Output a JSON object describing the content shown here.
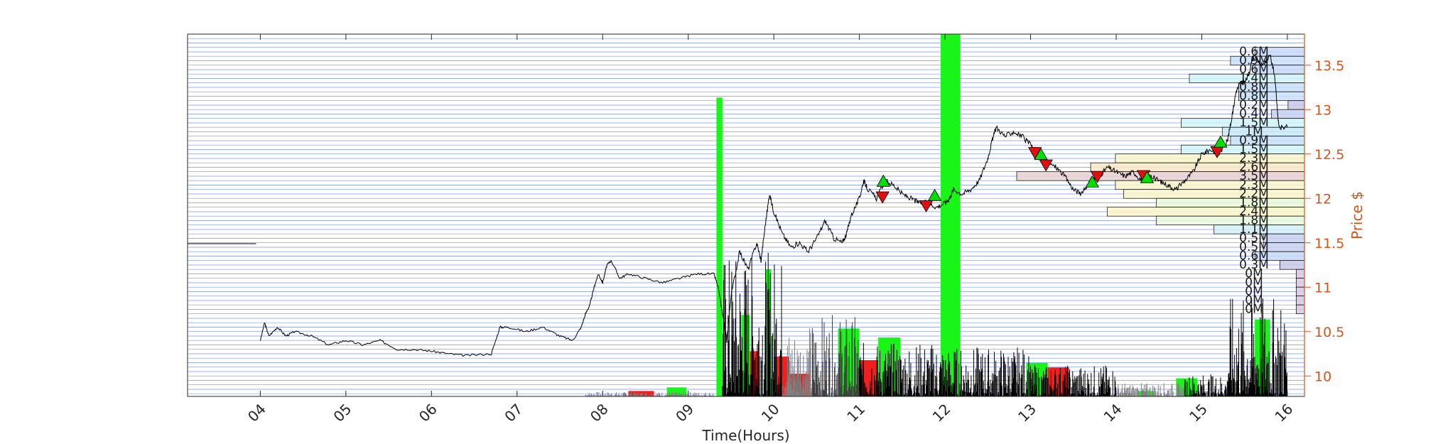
{
  "chart_data": {
    "type": "line",
    "title": "",
    "xlabel": "Time(Hours)",
    "ylabel": "Price $",
    "xlim": [
      3.15,
      16.2
    ],
    "ylim": [
      9.77,
      13.85
    ],
    "x_ticks": [
      "04",
      "05",
      "06",
      "07",
      "08",
      "09",
      "10",
      "11",
      "12",
      "13",
      "14",
      "15",
      "16"
    ],
    "y_ticks": [
      "10",
      "10.5",
      "11",
      "11.5",
      "12",
      "12.5",
      "13",
      "13.5"
    ],
    "grid": "horizontal price-bin lines",
    "colors": {
      "axis": "#262626",
      "price_axis": "#D95319",
      "grid": "#4D6CFF",
      "price_line": "#000000",
      "buy_marker": "#00E000",
      "sell_marker": "#E01010",
      "volume_green": "#19F419",
      "volume_red": "#F02020",
      "volume_black": "#000000",
      "volume_gray": "#808080"
    },
    "price_series": [
      [
        3.15,
        11.49
      ],
      [
        3.95,
        11.49
      ],
      [
        4.0,
        10.4
      ],
      [
        4.05,
        10.6
      ],
      [
        4.1,
        10.45
      ],
      [
        4.2,
        10.55
      ],
      [
        4.3,
        10.45
      ],
      [
        4.4,
        10.5
      ],
      [
        4.6,
        10.45
      ],
      [
        4.8,
        10.35
      ],
      [
        5.0,
        10.4
      ],
      [
        5.2,
        10.35
      ],
      [
        5.4,
        10.4
      ],
      [
        5.6,
        10.3
      ],
      [
        5.8,
        10.3
      ],
      [
        6.0,
        10.28
      ],
      [
        6.2,
        10.25
      ],
      [
        6.4,
        10.23
      ],
      [
        6.7,
        10.25
      ],
      [
        6.8,
        10.55
      ],
      [
        6.9,
        10.55
      ],
      [
        7.1,
        10.5
      ],
      [
        7.3,
        10.55
      ],
      [
        7.5,
        10.45
      ],
      [
        7.65,
        10.4
      ],
      [
        7.75,
        10.55
      ],
      [
        7.8,
        10.7
      ],
      [
        7.85,
        10.8
      ],
      [
        7.9,
        11.0
      ],
      [
        7.95,
        11.15
      ],
      [
        8.0,
        11.05
      ],
      [
        8.05,
        11.25
      ],
      [
        8.1,
        11.3
      ],
      [
        8.2,
        11.1
      ],
      [
        8.3,
        11.15
      ],
      [
        8.5,
        11.1
      ],
      [
        8.7,
        11.05
      ],
      [
        8.9,
        11.1
      ],
      [
        9.1,
        11.15
      ],
      [
        9.3,
        11.15
      ],
      [
        9.35,
        11.0
      ],
      [
        9.4,
        10.7
      ],
      [
        9.45,
        10.4
      ],
      [
        9.5,
        10.9
      ],
      [
        9.6,
        11.4
      ],
      [
        9.7,
        11.2
      ],
      [
        9.8,
        11.5
      ],
      [
        9.85,
        11.3
      ],
      [
        9.9,
        11.7
      ],
      [
        9.95,
        12.05
      ],
      [
        10.0,
        11.85
      ],
      [
        10.1,
        11.6
      ],
      [
        10.2,
        11.45
      ],
      [
        10.3,
        11.5
      ],
      [
        10.4,
        11.4
      ],
      [
        10.5,
        11.55
      ],
      [
        10.6,
        11.75
      ],
      [
        10.7,
        11.55
      ],
      [
        10.8,
        11.5
      ],
      [
        10.85,
        11.6
      ],
      [
        10.9,
        11.8
      ],
      [
        11.0,
        12.0
      ],
      [
        11.05,
        12.2
      ],
      [
        11.1,
        12.1
      ],
      [
        11.2,
        12.0
      ],
      [
        11.3,
        12.2
      ],
      [
        11.4,
        12.15
      ],
      [
        11.5,
        12.05
      ],
      [
        11.6,
        12.0
      ],
      [
        11.7,
        11.95
      ],
      [
        11.8,
        11.95
      ],
      [
        11.9,
        11.9
      ],
      [
        12.0,
        11.95
      ],
      [
        12.05,
        12.0
      ],
      [
        12.1,
        12.1
      ],
      [
        12.2,
        12.05
      ],
      [
        12.3,
        12.1
      ],
      [
        12.4,
        12.2
      ],
      [
        12.5,
        12.45
      ],
      [
        12.55,
        12.65
      ],
      [
        12.6,
        12.8
      ],
      [
        12.7,
        12.7
      ],
      [
        12.8,
        12.75
      ],
      [
        12.9,
        12.7
      ],
      [
        13.0,
        12.6
      ],
      [
        13.1,
        12.5
      ],
      [
        13.2,
        12.4
      ],
      [
        13.3,
        12.35
      ],
      [
        13.4,
        12.25
      ],
      [
        13.5,
        12.1
      ],
      [
        13.6,
        12.05
      ],
      [
        13.7,
        12.2
      ],
      [
        13.8,
        12.25
      ],
      [
        13.9,
        12.35
      ],
      [
        14.0,
        12.3
      ],
      [
        14.1,
        12.25
      ],
      [
        14.2,
        12.3
      ],
      [
        14.3,
        12.2
      ],
      [
        14.4,
        12.25
      ],
      [
        14.5,
        12.2
      ],
      [
        14.6,
        12.15
      ],
      [
        14.7,
        12.1
      ],
      [
        14.8,
        12.2
      ],
      [
        14.9,
        12.3
      ],
      [
        15.0,
        12.5
      ],
      [
        15.1,
        12.55
      ],
      [
        15.2,
        12.5
      ],
      [
        15.3,
        12.65
      ],
      [
        15.35,
        12.9
      ],
      [
        15.4,
        13.2
      ],
      [
        15.45,
        13.3
      ],
      [
        15.5,
        13.3
      ],
      [
        15.55,
        13.4
      ],
      [
        15.6,
        13.6
      ],
      [
        15.7,
        13.5
      ],
      [
        15.8,
        13.6
      ],
      [
        15.85,
        13.4
      ],
      [
        15.9,
        12.8
      ],
      [
        16.0,
        12.8
      ]
    ],
    "signals": [
      {
        "x": 11.28,
        "y": 12.19,
        "type": "buy"
      },
      {
        "x": 11.27,
        "y": 12.02,
        "type": "sell"
      },
      {
        "x": 11.78,
        "y": 11.92,
        "type": "sell"
      },
      {
        "x": 11.88,
        "y": 12.03,
        "type": "buy"
      },
      {
        "x": 13.05,
        "y": 12.52,
        "type": "sell"
      },
      {
        "x": 13.12,
        "y": 12.49,
        "type": "buy"
      },
      {
        "x": 13.18,
        "y": 12.38,
        "type": "sell"
      },
      {
        "x": 13.72,
        "y": 12.18,
        "type": "buy"
      },
      {
        "x": 13.78,
        "y": 12.25,
        "type": "sell"
      },
      {
        "x": 14.32,
        "y": 12.26,
        "type": "sell"
      },
      {
        "x": 14.36,
        "y": 12.23,
        "type": "buy"
      },
      {
        "x": 15.18,
        "y": 12.53,
        "type": "sell"
      },
      {
        "x": 15.22,
        "y": 12.63,
        "type": "buy"
      }
    ],
    "volume_bars": [
      {
        "x0": 8.3,
        "x1": 8.6,
        "v": 0.06,
        "color": "red"
      },
      {
        "x0": 8.75,
        "x1": 8.98,
        "v": 0.1,
        "color": "green"
      },
      {
        "x0": 9.33,
        "x1": 9.4,
        "v": 3.3,
        "color": "green"
      },
      {
        "x0": 9.62,
        "x1": 9.72,
        "v": 0.9,
        "color": "green"
      },
      {
        "x0": 9.72,
        "x1": 9.82,
        "v": 0.5,
        "color": "red"
      },
      {
        "x0": 9.9,
        "x1": 9.97,
        "v": 1.4,
        "color": "green"
      },
      {
        "x0": 10.0,
        "x1": 10.18,
        "v": 0.44,
        "color": "red"
      },
      {
        "x0": 10.12,
        "x1": 10.42,
        "v": 0.25,
        "color": "red"
      },
      {
        "x0": 10.75,
        "x1": 11.0,
        "v": 0.75,
        "color": "green"
      },
      {
        "x0": 11.0,
        "x1": 11.22,
        "v": 0.4,
        "color": "red"
      },
      {
        "x0": 11.22,
        "x1": 11.48,
        "v": 0.65,
        "color": "green"
      },
      {
        "x0": 11.95,
        "x1": 12.18,
        "v": 4.0,
        "color": "green"
      },
      {
        "x0": 12.95,
        "x1": 13.2,
        "v": 0.37,
        "color": "green"
      },
      {
        "x0": 13.2,
        "x1": 13.45,
        "v": 0.32,
        "color": "red"
      },
      {
        "x0": 14.25,
        "x1": 14.45,
        "v": 0.06,
        "color": "green"
      },
      {
        "x0": 14.7,
        "x1": 14.95,
        "v": 0.2,
        "color": "green"
      },
      {
        "x0": 15.62,
        "x1": 15.8,
        "v": 0.85,
        "color": "green"
      }
    ],
    "volume_profile": [
      {
        "price": 13.65,
        "label": "0.6M",
        "volume": 0.6,
        "color": "#C8D8F8"
      },
      {
        "price": 13.55,
        "label": "0.9M",
        "volume": 0.9,
        "color": "#C8E0F8"
      },
      {
        "price": 13.45,
        "label": "0.6M",
        "volume": 0.6,
        "color": "#C8D8F8"
      },
      {
        "price": 13.35,
        "label": "1.4M",
        "volume": 1.4,
        "color": "#D0F4F8"
      },
      {
        "price": 13.25,
        "label": "0.8M",
        "volume": 0.8,
        "color": "#C8E0F8"
      },
      {
        "price": 13.15,
        "label": "0.8M",
        "volume": 0.8,
        "color": "#C8E0F8"
      },
      {
        "price": 13.05,
        "label": "0.2M",
        "volume": 0.2,
        "color": "#C8C8E8"
      },
      {
        "price": 12.95,
        "label": "0.4M",
        "volume": 0.4,
        "color": "#C8D0F0"
      },
      {
        "price": 12.85,
        "label": "1.5M",
        "volume": 1.5,
        "color": "#D0F4F8"
      },
      {
        "price": 12.75,
        "label": "1M",
        "volume": 1.0,
        "color": "#C8E8F8"
      },
      {
        "price": 12.65,
        "label": "0.9M",
        "volume": 0.9,
        "color": "#C8E0F8"
      },
      {
        "price": 12.55,
        "label": "1.5M",
        "volume": 1.5,
        "color": "#D0F4F8"
      },
      {
        "price": 12.45,
        "label": "2.3M",
        "volume": 2.3,
        "color": "#F8F4C8"
      },
      {
        "price": 12.35,
        "label": "2.6M",
        "volume": 2.6,
        "color": "#F8E8C8"
      },
      {
        "price": 12.25,
        "label": "3.5M",
        "volume": 3.5,
        "color": "#E8D0D0"
      },
      {
        "price": 12.15,
        "label": "2.3M",
        "volume": 2.3,
        "color": "#F8F4C8"
      },
      {
        "price": 12.05,
        "label": "2.2M",
        "volume": 2.2,
        "color": "#F8F4C8"
      },
      {
        "price": 11.95,
        "label": "1.8M",
        "volume": 1.8,
        "color": "#E8F8D8"
      },
      {
        "price": 11.85,
        "label": "2.4M",
        "volume": 2.4,
        "color": "#F8F4C8"
      },
      {
        "price": 11.75,
        "label": "1.8M",
        "volume": 1.8,
        "color": "#E8F8D8"
      },
      {
        "price": 11.65,
        "label": "1.1M",
        "volume": 1.1,
        "color": "#D0F0F8"
      },
      {
        "price": 11.55,
        "label": "0.5M",
        "volume": 0.5,
        "color": "#C8D0F0"
      },
      {
        "price": 11.45,
        "label": "0.5M",
        "volume": 0.5,
        "color": "#C8D0F0"
      },
      {
        "price": 11.35,
        "label": "0.6M",
        "volume": 0.6,
        "color": "#C8D8F8"
      },
      {
        "price": 11.25,
        "label": "0.3M",
        "volume": 0.3,
        "color": "#C8C8E8"
      },
      {
        "price": 11.15,
        "label": "0M",
        "volume": 0.1,
        "color": "#D8C8E0"
      },
      {
        "price": 11.05,
        "label": "0M",
        "volume": 0.1,
        "color": "#D8C8E0"
      },
      {
        "price": 10.95,
        "label": "0M",
        "volume": 0.1,
        "color": "#D8C8E0"
      },
      {
        "price": 10.85,
        "label": "0M",
        "volume": 0.1,
        "color": "#D8C8E0"
      },
      {
        "price": 10.75,
        "label": "0M",
        "volume": 0.1,
        "color": "#D8C8E0"
      }
    ]
  }
}
